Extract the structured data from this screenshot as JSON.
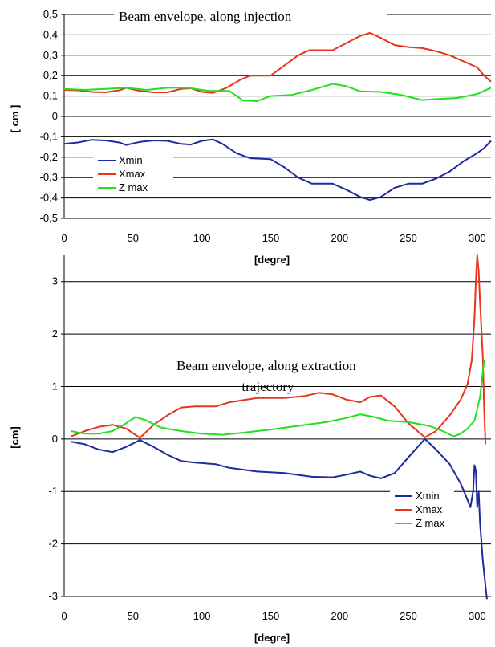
{
  "chart_data": [
    {
      "type": "line",
      "title": "Beam envelope, along injection",
      "xlabel": "[degre]",
      "ylabel": "[ cm ]",
      "xlim": [
        0,
        310
      ],
      "ylim": [
        -0.5,
        0.5
      ],
      "xticks": [
        "0",
        "50",
        "100",
        "150",
        "200",
        "250",
        "300"
      ],
      "yticks": [
        "0,5",
        "0,4",
        "0,3",
        "0,2",
        "0,1",
        "0",
        "-0,1",
        "-0,2",
        "-0,3",
        "-0,4",
        "-0,5"
      ],
      "grid": "horizontal",
      "legend_position": "bottom-left",
      "series": [
        {
          "name": "Xmin",
          "color": "#1f2a9e",
          "points": [
            [
              0,
              -0.135
            ],
            [
              10,
              -0.128
            ],
            [
              20,
              -0.115
            ],
            [
              30,
              -0.118
            ],
            [
              40,
              -0.128
            ],
            [
              45,
              -0.14
            ],
            [
              55,
              -0.125
            ],
            [
              65,
              -0.118
            ],
            [
              75,
              -0.12
            ],
            [
              85,
              -0.135
            ],
            [
              92,
              -0.138
            ],
            [
              100,
              -0.12
            ],
            [
              108,
              -0.113
            ],
            [
              115,
              -0.135
            ],
            [
              125,
              -0.18
            ],
            [
              135,
              -0.205
            ],
            [
              150,
              -0.21
            ],
            [
              160,
              -0.25
            ],
            [
              170,
              -0.3
            ],
            [
              180,
              -0.33
            ],
            [
              195,
              -0.33
            ],
            [
              205,
              -0.36
            ],
            [
              215,
              -0.395
            ],
            [
              222,
              -0.41
            ],
            [
              230,
              -0.395
            ],
            [
              240,
              -0.35
            ],
            [
              250,
              -0.33
            ],
            [
              260,
              -0.33
            ],
            [
              270,
              -0.305
            ],
            [
              280,
              -0.27
            ],
            [
              290,
              -0.22
            ],
            [
              300,
              -0.18
            ],
            [
              305,
              -0.155
            ],
            [
              310,
              -0.12
            ]
          ]
        },
        {
          "name": "Xmax",
          "color": "#e8341c",
          "points": [
            [
              0,
              0.13
            ],
            [
              10,
              0.128
            ],
            [
              20,
              0.12
            ],
            [
              30,
              0.118
            ],
            [
              40,
              0.128
            ],
            [
              45,
              0.14
            ],
            [
              55,
              0.125
            ],
            [
              65,
              0.118
            ],
            [
              75,
              0.118
            ],
            [
              85,
              0.135
            ],
            [
              92,
              0.138
            ],
            [
              100,
              0.12
            ],
            [
              108,
              0.115
            ],
            [
              118,
              0.14
            ],
            [
              128,
              0.18
            ],
            [
              135,
              0.2
            ],
            [
              150,
              0.2
            ],
            [
              160,
              0.25
            ],
            [
              170,
              0.3
            ],
            [
              178,
              0.325
            ],
            [
              195,
              0.325
            ],
            [
              205,
              0.36
            ],
            [
              215,
              0.395
            ],
            [
              222,
              0.41
            ],
            [
              230,
              0.385
            ],
            [
              240,
              0.35
            ],
            [
              250,
              0.34
            ],
            [
              260,
              0.335
            ],
            [
              270,
              0.32
            ],
            [
              280,
              0.3
            ],
            [
              290,
              0.27
            ],
            [
              300,
              0.24
            ],
            [
              305,
              0.2
            ],
            [
              310,
              0.17
            ]
          ]
        },
        {
          "name": "Z max",
          "color": "#22e01c",
          "points": [
            [
              0,
              0.135
            ],
            [
              15,
              0.13
            ],
            [
              30,
              0.135
            ],
            [
              45,
              0.14
            ],
            [
              60,
              0.13
            ],
            [
              75,
              0.14
            ],
            [
              90,
              0.14
            ],
            [
              105,
              0.125
            ],
            [
              120,
              0.125
            ],
            [
              130,
              0.078
            ],
            [
              140,
              0.075
            ],
            [
              150,
              0.1
            ],
            [
              165,
              0.105
            ],
            [
              180,
              0.13
            ],
            [
              195,
              0.16
            ],
            [
              205,
              0.148
            ],
            [
              215,
              0.123
            ],
            [
              230,
              0.12
            ],
            [
              245,
              0.105
            ],
            [
              260,
              0.08
            ],
            [
              270,
              0.085
            ],
            [
              285,
              0.09
            ],
            [
              300,
              0.11
            ],
            [
              310,
              0.14
            ]
          ]
        }
      ]
    },
    {
      "type": "line",
      "title": "Beam envelope, along extraction trajectory",
      "xlabel": "[degre]",
      "ylabel": "[cm]",
      "xlim": [
        0,
        310
      ],
      "ylim": [
        -3,
        3.5
      ],
      "xticks": [
        "0",
        "50",
        "100",
        "150",
        "200",
        "250",
        "300"
      ],
      "yticks": [
        "3",
        "2",
        "1",
        "0",
        "-1",
        "-2",
        "-3"
      ],
      "grid": "horizontal",
      "legend_position": "bottom-right",
      "series": [
        {
          "name": "Xmin",
          "color": "#1f2a9e",
          "points": [
            [
              5,
              -0.05
            ],
            [
              15,
              -0.1
            ],
            [
              25,
              -0.2
            ],
            [
              35,
              -0.25
            ],
            [
              45,
              -0.15
            ],
            [
              55,
              -0.02
            ],
            [
              65,
              -0.15
            ],
            [
              75,
              -0.3
            ],
            [
              85,
              -0.42
            ],
            [
              95,
              -0.45
            ],
            [
              110,
              -0.48
            ],
            [
              120,
              -0.55
            ],
            [
              140,
              -0.62
            ],
            [
              160,
              -0.65
            ],
            [
              180,
              -0.72
            ],
            [
              195,
              -0.73
            ],
            [
              205,
              -0.68
            ],
            [
              215,
              -0.62
            ],
            [
              222,
              -0.7
            ],
            [
              230,
              -0.75
            ],
            [
              240,
              -0.65
            ],
            [
              250,
              -0.35
            ],
            [
              262,
              0.0
            ],
            [
              270,
              -0.2
            ],
            [
              280,
              -0.48
            ],
            [
              288,
              -0.85
            ],
            [
              292,
              -1.1
            ],
            [
              295,
              -1.3
            ],
            [
              297,
              -1.0
            ],
            [
              298,
              -0.5
            ],
            [
              299,
              -0.6
            ],
            [
              300,
              -1.3
            ],
            [
              301,
              -1.0
            ],
            [
              302,
              -1.6
            ],
            [
              304,
              -2.3
            ],
            [
              306,
              -2.8
            ],
            [
              307,
              -3.05
            ]
          ]
        },
        {
          "name": "Xmax",
          "color": "#e8341c",
          "points": [
            [
              5,
              0.05
            ],
            [
              15,
              0.15
            ],
            [
              25,
              0.23
            ],
            [
              35,
              0.27
            ],
            [
              45,
              0.2
            ],
            [
              55,
              0.02
            ],
            [
              65,
              0.27
            ],
            [
              75,
              0.45
            ],
            [
              85,
              0.6
            ],
            [
              95,
              0.62
            ],
            [
              110,
              0.62
            ],
            [
              120,
              0.7
            ],
            [
              140,
              0.78
            ],
            [
              160,
              0.78
            ],
            [
              175,
              0.82
            ],
            [
              185,
              0.88
            ],
            [
              195,
              0.85
            ],
            [
              205,
              0.75
            ],
            [
              215,
              0.7
            ],
            [
              222,
              0.8
            ],
            [
              230,
              0.83
            ],
            [
              240,
              0.62
            ],
            [
              250,
              0.3
            ],
            [
              262,
              0.03
            ],
            [
              270,
              0.15
            ],
            [
              280,
              0.45
            ],
            [
              288,
              0.75
            ],
            [
              293,
              1.05
            ],
            [
              296,
              1.5
            ],
            [
              298,
              2.3
            ],
            [
              299,
              3.0
            ],
            [
              300,
              3.5
            ],
            [
              301,
              3.2
            ],
            [
              302,
              2.6
            ],
            [
              304,
              1.6
            ],
            [
              305,
              0.6
            ],
            [
              306,
              -0.1
            ]
          ]
        },
        {
          "name": "Z max",
          "color": "#22e01c",
          "points": [
            [
              5,
              0.15
            ],
            [
              15,
              0.1
            ],
            [
              25,
              0.1
            ],
            [
              35,
              0.15
            ],
            [
              45,
              0.3
            ],
            [
              52,
              0.42
            ],
            [
              60,
              0.35
            ],
            [
              70,
              0.22
            ],
            [
              85,
              0.15
            ],
            [
              100,
              0.1
            ],
            [
              115,
              0.08
            ],
            [
              130,
              0.12
            ],
            [
              150,
              0.18
            ],
            [
              170,
              0.25
            ],
            [
              190,
              0.32
            ],
            [
              205,
              0.4
            ],
            [
              215,
              0.47
            ],
            [
              225,
              0.42
            ],
            [
              235,
              0.35
            ],
            [
              250,
              0.32
            ],
            [
              265,
              0.25
            ],
            [
              275,
              0.15
            ],
            [
              283,
              0.05
            ],
            [
              288,
              0.1
            ],
            [
              293,
              0.2
            ],
            [
              298,
              0.35
            ],
            [
              302,
              0.8
            ],
            [
              305,
              1.5
            ]
          ]
        }
      ]
    }
  ]
}
